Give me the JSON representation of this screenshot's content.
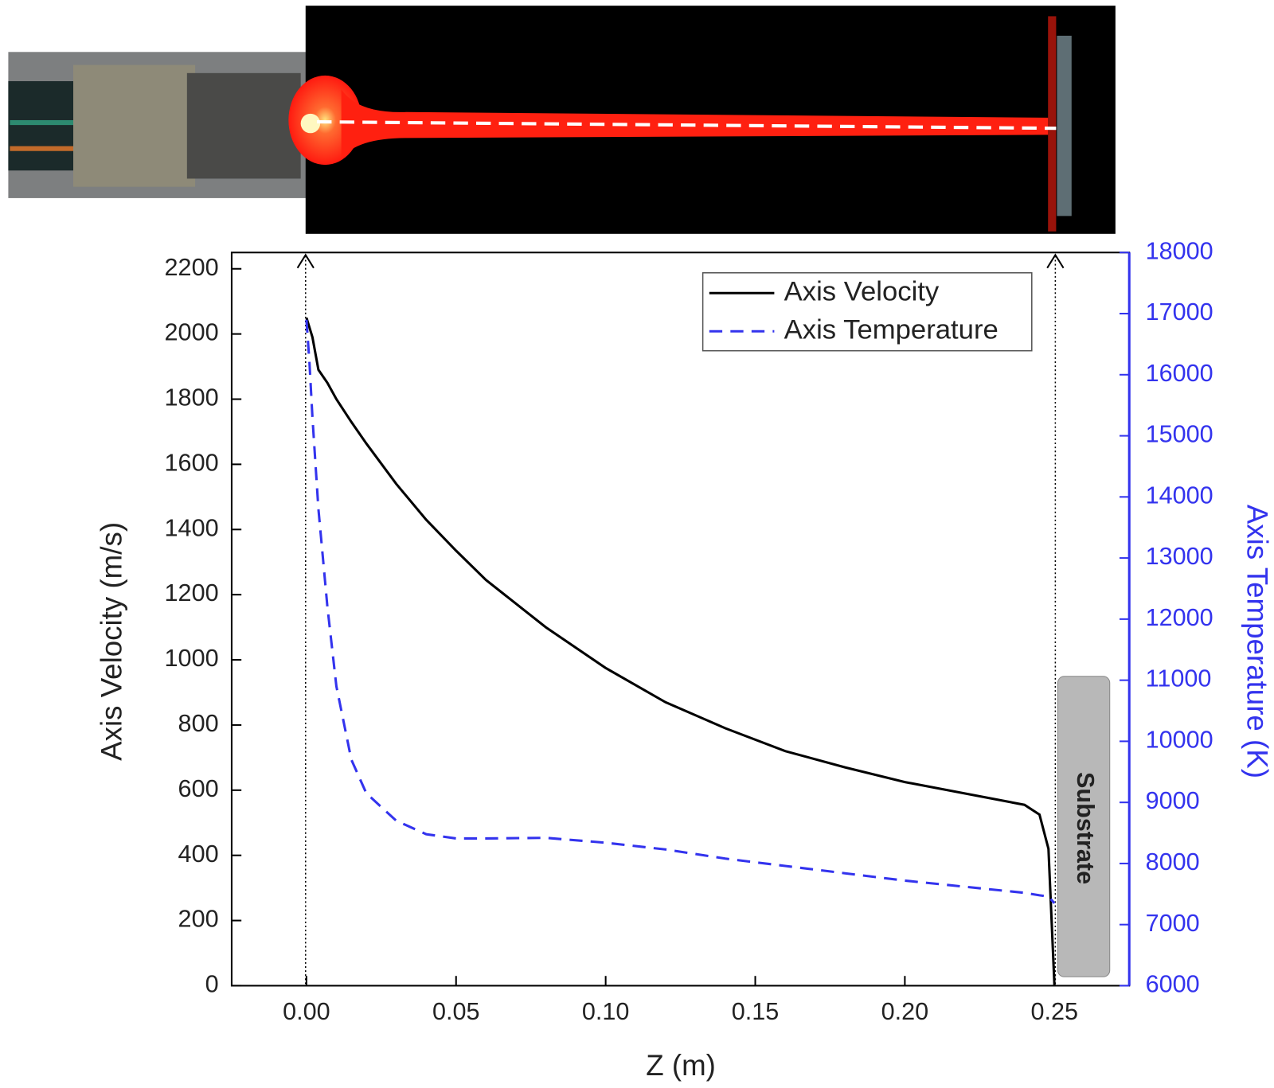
{
  "chart_data": {
    "type": "line",
    "x_label": "Z (m)",
    "y_label": "Axis Velocity (m/s)",
    "y2_label": "Axis Temperature (K)",
    "annotation": "Substrate",
    "x": [
      0,
      0.001,
      0.002,
      0.004,
      0.007,
      0.01,
      0.015,
      0.02,
      0.03,
      0.04,
      0.05,
      0.06,
      0.08,
      0.1,
      0.12,
      0.14,
      0.16,
      0.18,
      0.2,
      0.22,
      0.24,
      0.245,
      0.248,
      0.25
    ],
    "series": [
      {
        "name": "Axis Velocity",
        "color": "#000000",
        "dash": "solid",
        "values": [
          2050,
          2020,
          1990,
          1890,
          1850,
          1800,
          1730,
          1664,
          1540,
          1430,
          1335,
          1245,
          1100,
          975,
          870,
          790,
          720,
          670,
          625,
          590,
          555,
          525,
          420,
          0
        ]
      },
      {
        "name": "Axis Temperature",
        "color": "#3333ee",
        "dash": "dashed",
        "axis": "y2",
        "values": [
          16900,
          16200,
          15300,
          13800,
          12200,
          10900,
          9700,
          9150,
          8700,
          8480,
          8410,
          8410,
          8420,
          8340,
          8230,
          8080,
          7960,
          7840,
          7720,
          7620,
          7520,
          7480,
          7460,
          7350
        ]
      }
    ],
    "xlim": [
      -0.025,
      0.275
    ],
    "xticks": [
      {
        "value": 0,
        "label": "0.00"
      },
      0.05,
      {
        "value": 0.1,
        "label": "0.10"
      },
      0.15,
      {
        "value": 0.2,
        "label": "0.20"
      },
      0.25
    ],
    "ylim": [
      0,
      2250
    ],
    "yticks": [
      0,
      200,
      400,
      600,
      800,
      1000,
      1200,
      1400,
      1600,
      1800,
      2000,
      2200
    ],
    "y2lim": [
      6000,
      18000
    ],
    "y2ticks": [
      6000,
      7000,
      8000,
      9000,
      10000,
      11000,
      12000,
      13000,
      14000,
      15000,
      16000,
      17000,
      18000
    ],
    "y2_color": "#3333ee",
    "legend": "upper right"
  }
}
